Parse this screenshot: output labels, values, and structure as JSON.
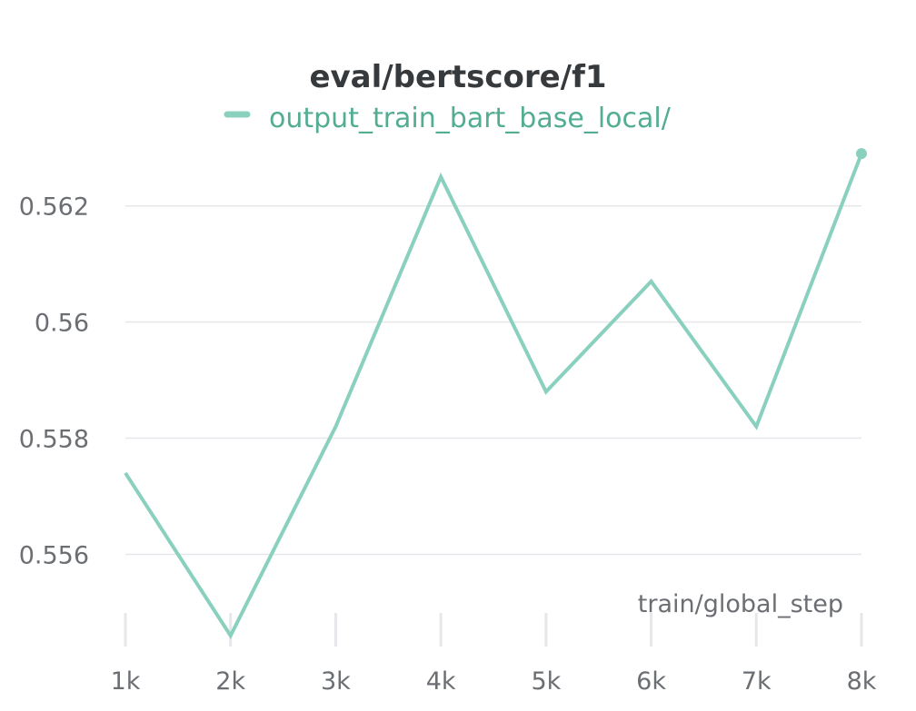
{
  "chart_data": {
    "type": "line",
    "title": "eval/bertscore/f1",
    "xlabel": "train/global_step",
    "ylabel": "",
    "x": [
      1000,
      2000,
      3000,
      4000,
      5000,
      6000,
      7000,
      8000
    ],
    "x_tick_labels": [
      "1k",
      "2k",
      "3k",
      "4k",
      "5k",
      "6k",
      "7k",
      "8k"
    ],
    "y_ticks": [
      0.556,
      0.558,
      0.56,
      0.562
    ],
    "y_tick_labels": [
      "0.556",
      "0.558",
      "0.56",
      "0.562"
    ],
    "ylim": [
      0.5546,
      0.5632
    ],
    "xlim": [
      1000,
      8000
    ],
    "grid": true,
    "legend_position": "top-center",
    "series": [
      {
        "name": "output_train_bart_base_local/",
        "color": "#8ad0be",
        "values": [
          0.5574,
          0.5546,
          0.5582,
          0.5625,
          0.5588,
          0.5607,
          0.5582,
          0.5629
        ]
      }
    ]
  }
}
